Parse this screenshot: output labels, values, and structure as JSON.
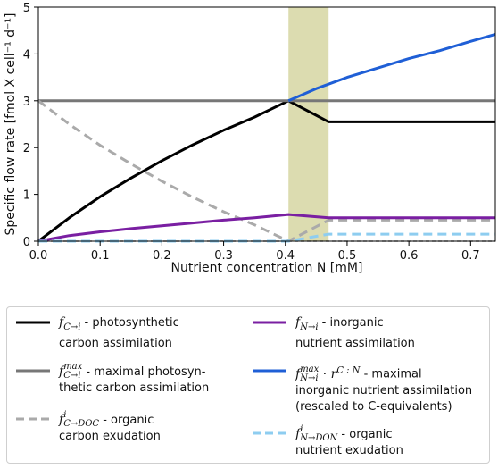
{
  "chart_data": {
    "type": "line",
    "xlabel": "Nutrient concentration N [mM]",
    "ylabel": "Specific flow rate [fmol X cell⁻¹ d⁻¹]",
    "xlim": [
      0.0,
      0.74
    ],
    "ylim": [
      0,
      5
    ],
    "x_ticks": [
      "0.0",
      "0.1",
      "0.2",
      "0.3",
      "0.4",
      "0.5",
      "0.6",
      "0.7"
    ],
    "y_ticks": [
      "0",
      "1",
      "2",
      "3",
      "4",
      "5"
    ],
    "shaded_region": {
      "x": [
        0.405,
        0.47
      ],
      "color": "#dcdcb0"
    },
    "series": [
      {
        "name": "photosynthetic carbon assimilation",
        "symbol_main": "f",
        "symbol_sub": "C→i",
        "symbol_sup": "",
        "desc_line1": " - photosynthetic",
        "desc_line2": "carbon assimilation",
        "color": "#000000",
        "dash": "solid",
        "x": [
          0.0,
          0.05,
          0.1,
          0.15,
          0.2,
          0.25,
          0.3,
          0.35,
          0.405,
          0.47,
          0.74
        ],
        "y": [
          0.0,
          0.5,
          0.95,
          1.35,
          1.72,
          2.06,
          2.37,
          2.65,
          3.0,
          2.55,
          2.55
        ]
      },
      {
        "name": "maximal photosynthetic carbon assimilation",
        "symbol_main": "f",
        "symbol_sub": "C→i",
        "symbol_sup": "max",
        "desc_line1": " - maximal photosyn-",
        "desc_line2": "thetic carbon assimilation",
        "color": "#777777",
        "dash": "solid",
        "x": [
          0.0,
          0.74
        ],
        "y": [
          3.0,
          3.0
        ]
      },
      {
        "name": "organic carbon exudation",
        "symbol_main": "f",
        "symbol_sub": "C→DOC",
        "symbol_sup": "i",
        "desc_line1": " - organic",
        "desc_line2": "carbon exudation",
        "color": "#aaaaaa",
        "dash": "dashed",
        "x": [
          0.0,
          0.05,
          0.1,
          0.15,
          0.2,
          0.25,
          0.3,
          0.35,
          0.405,
          0.47,
          0.74
        ],
        "y": [
          3.0,
          2.5,
          2.05,
          1.65,
          1.28,
          0.94,
          0.63,
          0.35,
          0.0,
          0.45,
          0.45
        ]
      },
      {
        "name": "inorganic nutrient assimilation",
        "symbol_main": "f",
        "symbol_sub": "N→i",
        "symbol_sup": "",
        "desc_line1": " - inorganic",
        "desc_line2": "nutrient assimilation",
        "color": "#7a1fa2",
        "dash": "solid",
        "x": [
          0.0,
          0.05,
          0.1,
          0.15,
          0.2,
          0.25,
          0.3,
          0.35,
          0.405,
          0.47,
          0.74
        ],
        "y": [
          0.0,
          0.12,
          0.2,
          0.27,
          0.33,
          0.39,
          0.45,
          0.5,
          0.57,
          0.5,
          0.5
        ]
      },
      {
        "name": "maximal inorganic nutrient assimilation (rescaled to C-equivalents)",
        "symbol_main": "f",
        "symbol_sub": "N→i",
        "symbol_sup": "max",
        "symbol_extra": " · r",
        "symbol_extra_sup": "C : N",
        "desc_line1": " - maximal",
        "desc_line2": "inorganic nutrient assimilation",
        "desc_line3": "(rescaled to C-equivalents)",
        "color": "#1f5fd6",
        "dash": "solid",
        "x": [
          0.405,
          0.45,
          0.5,
          0.55,
          0.6,
          0.65,
          0.7,
          0.74
        ],
        "y": [
          3.0,
          3.26,
          3.5,
          3.7,
          3.9,
          4.07,
          4.27,
          4.42
        ]
      },
      {
        "name": "organic nutrient exudation",
        "symbol_main": "f",
        "symbol_sub": "N→DON",
        "symbol_sup": "i",
        "desc_line1": " - organic",
        "desc_line2": "nutrient exudation",
        "color": "#8ecdf0",
        "dash": "dashed",
        "x": [
          0.0,
          0.405,
          0.47,
          0.74
        ],
        "y": [
          0.0,
          0.0,
          0.15,
          0.15
        ]
      }
    ]
  }
}
